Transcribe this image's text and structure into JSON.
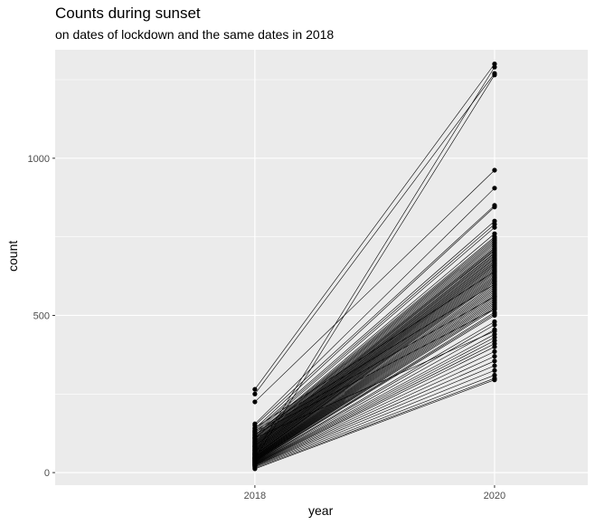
{
  "chart_data": {
    "type": "line",
    "title": "Counts during sunset",
    "subtitle": "on dates of lockdown and the same dates in 2018",
    "xlabel": "year",
    "ylabel": "count",
    "categories": [
      "2018",
      "2020"
    ],
    "yticks": [
      0,
      500,
      1000
    ],
    "ylim": [
      -40,
      1345
    ],
    "grid": true,
    "panel_color": "#ebebeb",
    "grid_color": "#ffffff",
    "line_color": "#000000",
    "point_color": "#000000",
    "pairs": [
      [
        265,
        1300
      ],
      [
        250,
        1270
      ],
      [
        225,
        962
      ],
      [
        155,
        905
      ],
      [
        150,
        850
      ],
      [
        140,
        845
      ],
      [
        135,
        800
      ],
      [
        130,
        790
      ],
      [
        125,
        780
      ],
      [
        120,
        760
      ],
      [
        118,
        750
      ],
      [
        115,
        745
      ],
      [
        112,
        740
      ],
      [
        110,
        735
      ],
      [
        108,
        730
      ],
      [
        105,
        725
      ],
      [
        102,
        720
      ],
      [
        100,
        715
      ],
      [
        98,
        712
      ],
      [
        96,
        708
      ],
      [
        94,
        705
      ],
      [
        92,
        700
      ],
      [
        90,
        697
      ],
      [
        88,
        693
      ],
      [
        86,
        690
      ],
      [
        85,
        686
      ],
      [
        83,
        682
      ],
      [
        82,
        679
      ],
      [
        80,
        675
      ],
      [
        78,
        672
      ],
      [
        77,
        668
      ],
      [
        75,
        665
      ],
      [
        74,
        661
      ],
      [
        72,
        658
      ],
      [
        71,
        654
      ],
      [
        70,
        650
      ],
      [
        68,
        646
      ],
      [
        67,
        642
      ],
      [
        65,
        638
      ],
      [
        64,
        634
      ],
      [
        62,
        630
      ],
      [
        61,
        626
      ],
      [
        60,
        622
      ],
      [
        58,
        618
      ],
      [
        57,
        614
      ],
      [
        56,
        610
      ],
      [
        55,
        606
      ],
      [
        54,
        600
      ],
      [
        52,
        595
      ],
      [
        51,
        590
      ],
      [
        50,
        585
      ],
      [
        49,
        580
      ],
      [
        48,
        575
      ],
      [
        47,
        570
      ],
      [
        46,
        565
      ],
      [
        45,
        560
      ],
      [
        44,
        555
      ],
      [
        43,
        550
      ],
      [
        42,
        545
      ],
      [
        41,
        540
      ],
      [
        40,
        535
      ],
      [
        39,
        530
      ],
      [
        38,
        525
      ],
      [
        37,
        520
      ],
      [
        36,
        510
      ],
      [
        35,
        505
      ],
      [
        34,
        500
      ],
      [
        33,
        480
      ],
      [
        32,
        470
      ],
      [
        31,
        455
      ],
      [
        30,
        440
      ],
      [
        29,
        430
      ],
      [
        28,
        420
      ],
      [
        27,
        410
      ],
      [
        26,
        400
      ],
      [
        25,
        385
      ],
      [
        24,
        370
      ],
      [
        23,
        355
      ],
      [
        22,
        340
      ],
      [
        20,
        325
      ],
      [
        18,
        310
      ],
      [
        15,
        300
      ],
      [
        12,
        295
      ],
      [
        142,
        640
      ],
      [
        132,
        600
      ],
      [
        128,
        560
      ],
      [
        122,
        520
      ],
      [
        60,
        1290
      ],
      [
        45,
        1265
      ],
      [
        110,
        450
      ]
    ]
  }
}
